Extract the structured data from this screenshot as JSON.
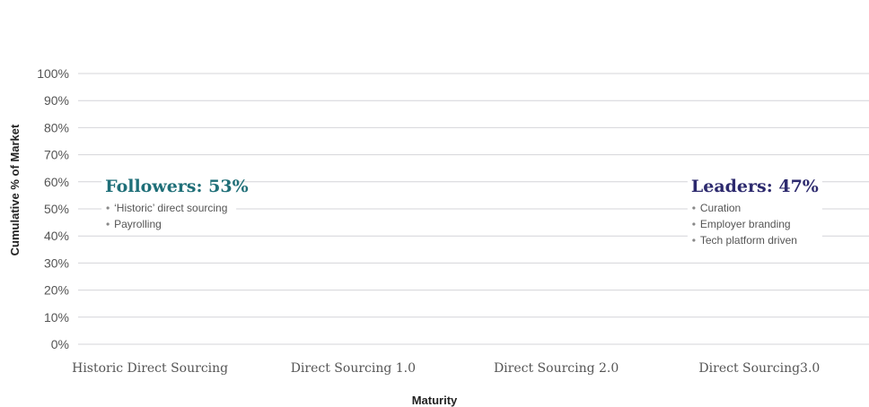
{
  "chart_data": {
    "type": "bar",
    "title": "",
    "xlabel": "Maturity",
    "ylabel": "Cumulative % of Market",
    "ylim": [
      0,
      100
    ],
    "yticks": [
      "0%",
      "10%",
      "20%",
      "30%",
      "40%",
      "50%",
      "60%",
      "70%",
      "80%",
      "90%",
      "100%"
    ],
    "categories": [
      "Historic Direct Sourcing",
      "Direct Sourcing 1.0",
      "Direct Sourcing 2.0",
      "Direct Sourcing3.0"
    ],
    "grid": true,
    "annotations": [
      {
        "title": "Followers: 53%",
        "value": 53,
        "color": "#1f6f78",
        "anchor_category": "Historic Direct Sourcing",
        "bullets": [
          "‘Historic’ direct sourcing",
          "Payrolling"
        ]
      },
      {
        "title": "Leaders: 47%",
        "value": 47,
        "color": "#2d2a6e",
        "anchor_category": "Direct Sourcing3.0",
        "bullets": [
          "Curation",
          "Employer branding",
          "Tech platform driven"
        ]
      }
    ]
  }
}
